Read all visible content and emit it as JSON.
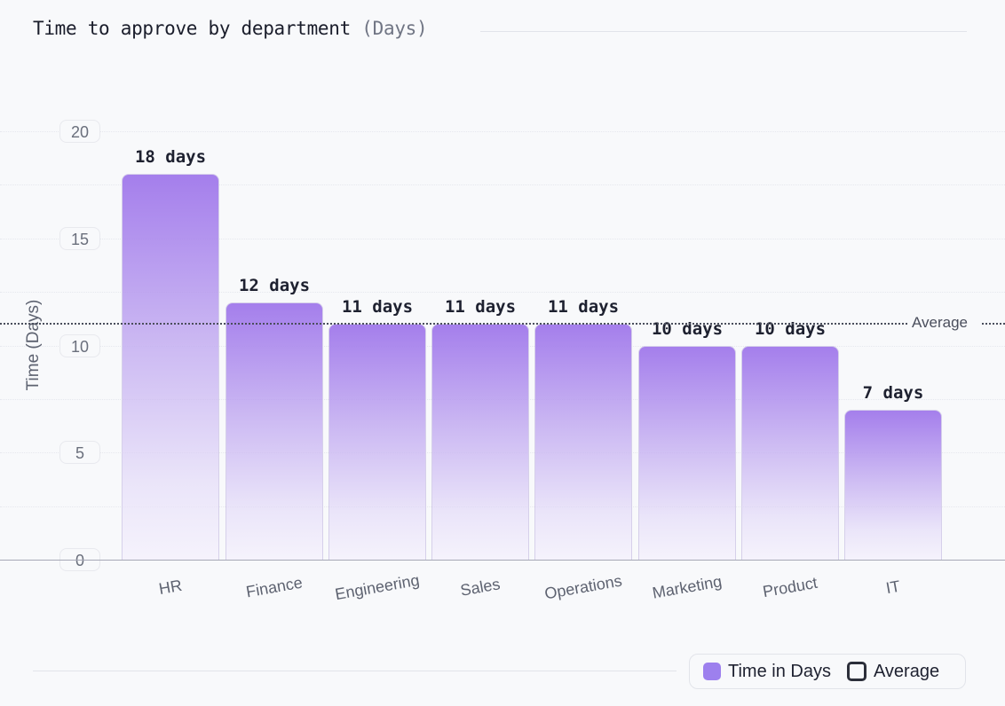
{
  "header": {
    "title": "Time to approve by department",
    "subtitle": "(Days)"
  },
  "axis": {
    "ylabel": "Time (Days)",
    "yticks": [
      "20",
      "15",
      "10",
      "5",
      "0"
    ]
  },
  "average": {
    "label": "Average",
    "value": 11.125
  },
  "legend": {
    "items": [
      {
        "label": "Time in Days",
        "color": "#9d80ee"
      },
      {
        "label": "Average",
        "color": "#2c2f3a"
      }
    ]
  },
  "bars": [
    {
      "category": "HR",
      "value": 18,
      "label": "18 days"
    },
    {
      "category": "Finance",
      "value": 12,
      "label": "12 days"
    },
    {
      "category": "Engineering",
      "value": 11,
      "label": "11 days"
    },
    {
      "category": "Sales",
      "value": 11,
      "label": "11 days"
    },
    {
      "category": "Operations",
      "value": 11,
      "label": "11 days"
    },
    {
      "category": "Marketing",
      "value": 10,
      "label": "10 days"
    },
    {
      "category": "Product",
      "value": 10,
      "label": "10 days"
    },
    {
      "category": "IT",
      "value": 7,
      "label": "7 days"
    }
  ],
  "chart_data": {
    "type": "bar",
    "title": "Time to approve by department (Days)",
    "xlabel": "",
    "ylabel": "Time (Days)",
    "categories": [
      "HR",
      "Finance",
      "Engineering",
      "Sales",
      "Operations",
      "Marketing",
      "Product",
      "IT"
    ],
    "series": [
      {
        "name": "Time in Days",
        "values": [
          18,
          12,
          11,
          11,
          11,
          10,
          10,
          7
        ]
      },
      {
        "name": "Average",
        "type": "reference-line",
        "value": 11.125
      }
    ],
    "data_labels": [
      "18 days",
      "12 days",
      "11 days",
      "11 days",
      "11 days",
      "10 days",
      "10 days",
      "7 days"
    ],
    "ylim": [
      0,
      20
    ],
    "yticks": [
      0,
      5,
      10,
      15,
      20
    ],
    "grid": true,
    "legend_position": "bottom-right",
    "bar_color": "#9d80ee"
  }
}
